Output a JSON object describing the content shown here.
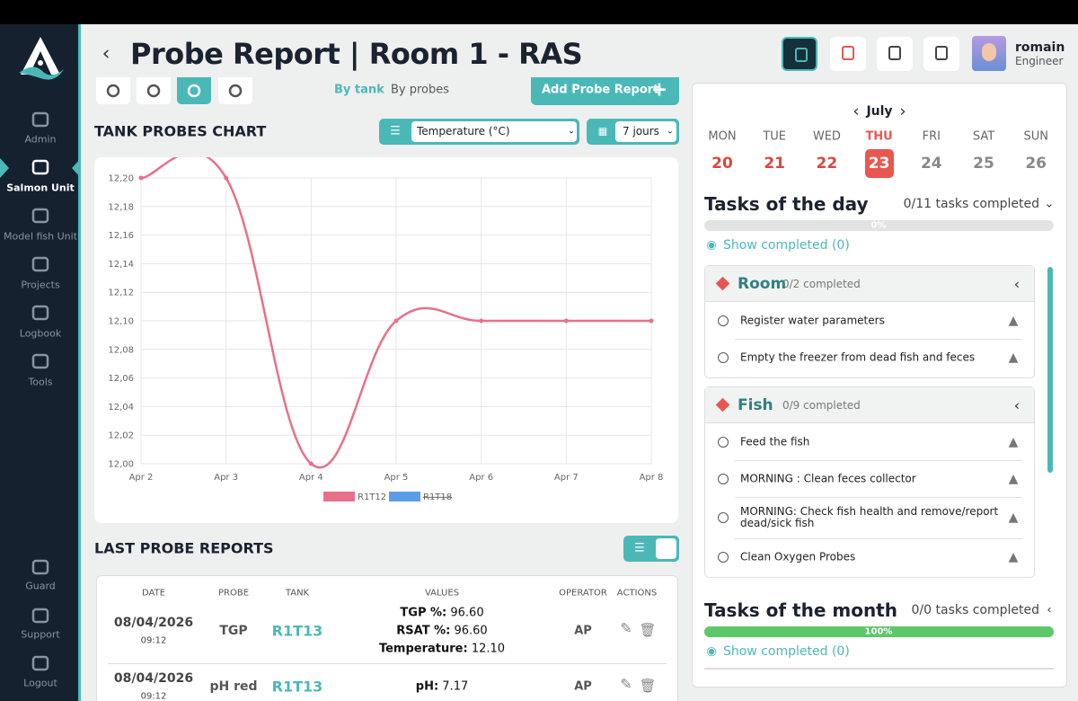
{
  "sidebar": {
    "items": [
      "Admin",
      "Salmon Unit",
      "Model fish Unit",
      "Projects",
      "Logbook",
      "Tools",
      "Guard",
      "Support",
      "Logout"
    ]
  },
  "header": {
    "title": "Probe Report | Room 1 - RAS",
    "user": {
      "name": "romain",
      "role": "Engineer"
    }
  },
  "toolbar": {
    "tabs": [
      "By tank",
      "By probes"
    ],
    "add_button": "Add Probe Report"
  },
  "chart_section": {
    "title": "TANK PROBES CHART",
    "parameter": "Temperature (°C)",
    "period": "7 jours"
  },
  "chart_data": {
    "type": "line",
    "categories": [
      "Apr 2",
      "Apr 3",
      "Apr 4",
      "Apr 5",
      "Apr 6",
      "Apr 7",
      "Apr 8"
    ],
    "series": [
      {
        "name": "R1T12",
        "color": "#e8708a",
        "values": [
          12.2,
          12.2,
          12,
          12.1,
          12.1,
          12.1,
          12.1
        ]
      },
      {
        "name": "R1T18",
        "color": "#5b9de8",
        "hidden": true
      }
    ],
    "ylim": [
      12,
      12.2
    ],
    "yticks": [
      {
        "value": 12,
        "label": "12,00"
      },
      {
        "value": 12.02,
        "label": "12,02"
      },
      {
        "value": 12.04,
        "label": "12,04"
      },
      {
        "value": 12.06,
        "label": "12,06"
      },
      {
        "value": 12.08,
        "label": "12,08"
      },
      {
        "value": 12.1,
        "label": "12,10"
      },
      {
        "value": 12.12,
        "label": "12,12"
      },
      {
        "value": 12.14,
        "label": "12,14"
      },
      {
        "value": 12.16,
        "label": "12,16"
      },
      {
        "value": 12.18,
        "label": "12,18"
      },
      {
        "value": 12.2,
        "label": "12,20"
      }
    ],
    "grid": true
  },
  "reports": {
    "title": "LAST PROBE REPORTS",
    "columns": [
      "DATE",
      "PROBE",
      "TANK",
      "VALUES",
      "OPERATOR",
      "ACTIONS"
    ],
    "rows": [
      {
        "date": "08/04/2026",
        "time": "09:12",
        "probe": "TGP",
        "tank": "R1T13",
        "values": [
          {
            "label": "TGP %:",
            "value": "96.60"
          },
          {
            "label": "RSAT %:",
            "value": "96.60"
          },
          {
            "label": "Temperature:",
            "value": "12.10"
          }
        ],
        "operator": "AP"
      },
      {
        "date": "08/04/2026",
        "time": "09:12",
        "probe": "pH red",
        "tank": "R1T13",
        "values": [
          {
            "label": "pH:",
            "value": "7.17"
          }
        ],
        "operator": "AP"
      }
    ]
  },
  "calendar": {
    "month": "July",
    "days": [
      {
        "name": "MON",
        "date": "20"
      },
      {
        "name": "TUE",
        "date": "21"
      },
      {
        "name": "WED",
        "date": "22"
      },
      {
        "name": "THU",
        "date": "23"
      },
      {
        "name": "FRI",
        "date": "24"
      },
      {
        "name": "SAT",
        "date": "25"
      },
      {
        "name": "SUN",
        "date": "26"
      }
    ]
  },
  "tasks_day": {
    "title": "Tasks of the day",
    "summary": "0/11 tasks completed",
    "progress": "0%",
    "show_completed": "Show completed (0)",
    "groups": [
      {
        "name": "Room",
        "summary": "0/2 completed",
        "tasks": [
          "Register water parameters",
          "Empty the freezer from dead fish and feces"
        ]
      },
      {
        "name": "Fish",
        "summary": "0/9 completed",
        "tasks": [
          "Feed the fish",
          "MORNING : Clean feces collector",
          "MORNING: Check fish health and remove/report dead/sick fish",
          "Clean Oxygen Probes"
        ]
      }
    ]
  },
  "tasks_month": {
    "title": "Tasks of the month",
    "summary": "0/0 tasks completed",
    "progress": "100%",
    "show_completed": "Show completed (0)"
  }
}
